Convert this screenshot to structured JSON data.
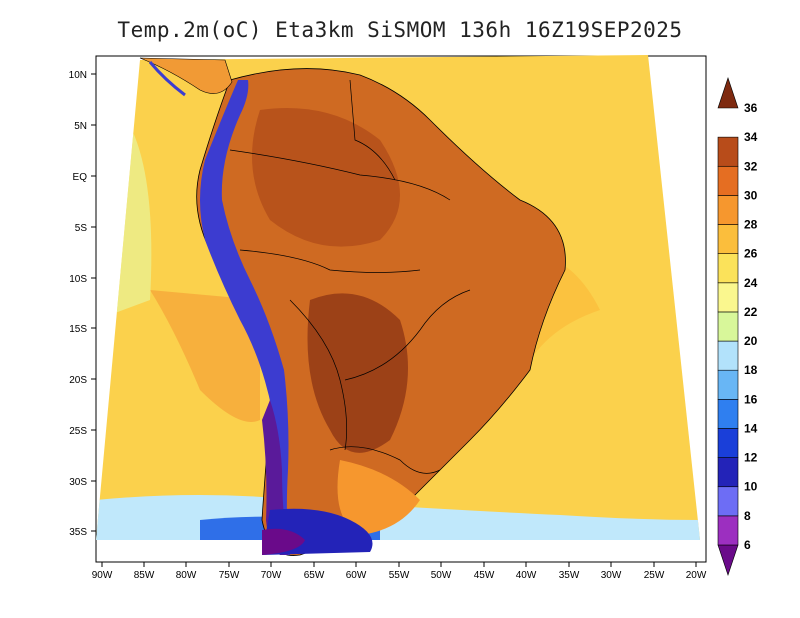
{
  "title": "Temp.2m(oC) Eta3km SiSMOM 136h 16Z19SEP2025",
  "lat_labels": [
    "10N",
    "5N",
    "EQ",
    "5S",
    "10S",
    "15S",
    "20S",
    "25S",
    "30S",
    "35S"
  ],
  "lon_labels": [
    "90W",
    "85W",
    "80W",
    "75W",
    "70W",
    "65W",
    "60W",
    "55W",
    "50W",
    "45W",
    "40W",
    "35W",
    "30W",
    "25W",
    "20W"
  ],
  "colorbar": {
    "labels": [
      "6",
      "8",
      "10",
      "12",
      "14",
      "16",
      "18",
      "20",
      "22",
      "24",
      "26",
      "28",
      "30",
      "32",
      "34",
      "36"
    ],
    "colors": [
      "#6a0a8a",
      "#9c2fc0",
      "#6d6df5",
      "#2323b8",
      "#1a3fd9",
      "#2f7ff0",
      "#68b6f5",
      "#b2e2fb",
      "#d8f79a",
      "#faf78e",
      "#fbe25a",
      "#fbbe3c",
      "#f6972e",
      "#e56e22",
      "#b84c1a",
      "#7e2a10"
    ]
  },
  "palette": {
    "ocean": "#fbd14c",
    "ocean_warm": "#fbbe3c",
    "land": "#cf6a22",
    "land_hot": "#9c4117",
    "land_cool": "#f19a35",
    "andes": "#3c3cd0",
    "cold_south": "#5a1a9a"
  }
}
